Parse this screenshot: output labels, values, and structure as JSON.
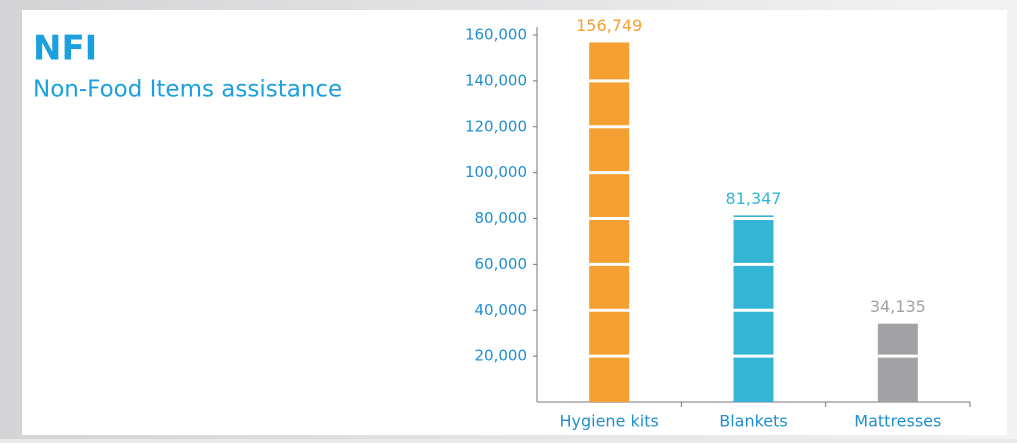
{
  "chart_data": {
    "type": "bar",
    "title": "NFI",
    "subtitle": "Non-Food Items assistance",
    "categories": [
      "Hygiene kits",
      "Blankets",
      "Mattresses"
    ],
    "values": [
      156749,
      81347,
      34135
    ],
    "value_labels": [
      "156,749",
      "81,347",
      "34,135"
    ],
    "colors": [
      "#f5a033",
      "#35b5d6",
      "#a2a2a5"
    ],
    "ylim": [
      0,
      160000
    ],
    "yticks": [
      {
        "value": 20000,
        "label": "20,000"
      },
      {
        "value": 40000,
        "label": "40,000"
      },
      {
        "value": 60000,
        "label": "60,000"
      },
      {
        "value": 80000,
        "label": "80,000"
      },
      {
        "value": 100000,
        "label": "100,000"
      },
      {
        "value": 120000,
        "label": "120,000"
      },
      {
        "value": 140000,
        "label": "140,000"
      },
      {
        "value": 160000,
        "label": "160,000"
      }
    ]
  }
}
